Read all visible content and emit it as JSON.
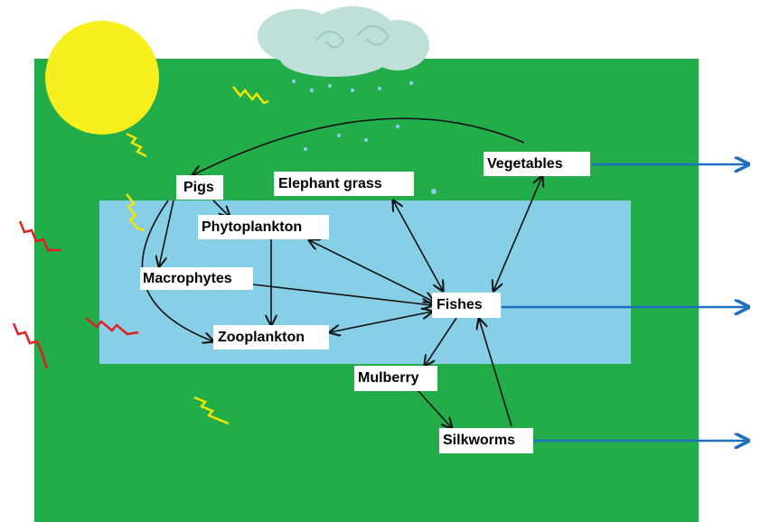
{
  "nodes": [
    {
      "label": "Pigs"
    },
    {
      "label": "Phytoplankton"
    },
    {
      "label": "Elephant grass"
    },
    {
      "label": "Vegetables"
    },
    {
      "label": "Macrophytes"
    },
    {
      "label": "Fishes"
    },
    {
      "label": "Zooplankton"
    },
    {
      "label": "Mulberry"
    },
    {
      "label": "Silkworms"
    }
  ]
}
